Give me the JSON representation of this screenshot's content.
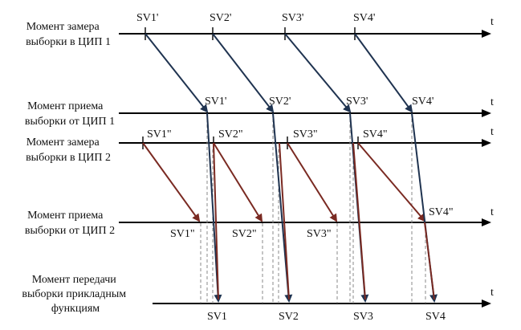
{
  "colors": {
    "axis": "#000000",
    "sv_primary": "#1f3350",
    "sv_secondary": "#7a2a22",
    "dashed": "#8a8a8a"
  },
  "rows": [
    {
      "id": "r1",
      "label": [
        "Момент замера",
        "выборки в ЦИП 1"
      ],
      "axis_symbol": "t"
    },
    {
      "id": "r2",
      "label": [
        "Момент приема",
        "выборки от ЦИП 1"
      ],
      "axis_symbol": "t"
    },
    {
      "id": "r3",
      "label": [
        "Момент замера",
        "выборки в ЦИП 2"
      ],
      "axis_symbol": "t"
    },
    {
      "id": "r4",
      "label": [
        "Момент приема",
        "выборки от ЦИП 2"
      ],
      "axis_symbol": "t"
    },
    {
      "id": "r5",
      "label": [
        "Момент передачи",
        "выборки прикладным",
        "функциям"
      ],
      "axis_symbol": "t"
    }
  ],
  "marks": {
    "r1": [
      "SV1'",
      "SV2'",
      "SV3'",
      "SV4'"
    ],
    "r2": [
      "SV1'",
      "SV2'",
      "SV3'",
      "SV4'"
    ],
    "r3": [
      "SV1\"",
      "SV2\"",
      "SV3\"",
      "SV4\""
    ],
    "r4": [
      "SV1\"",
      "SV2\"",
      "SV3\"",
      "SV4\""
    ],
    "r5": [
      "SV1",
      "SV2",
      "SV3",
      "SV4"
    ]
  }
}
